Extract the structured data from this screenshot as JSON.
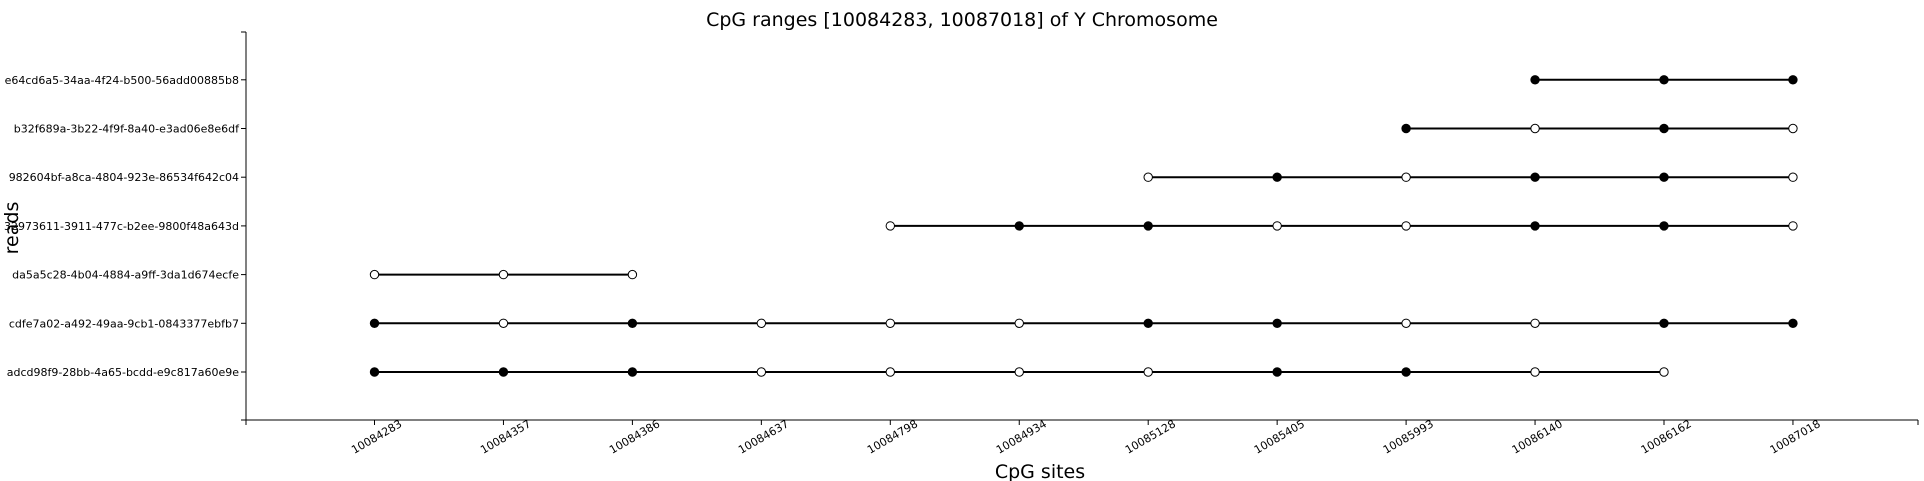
{
  "chart_data": {
    "type": "scatter",
    "title": "CpG ranges [10084283, 10087018] of Y Chromosome",
    "xlabel": "CpG sites",
    "ylabel": "reads",
    "grid": false,
    "categories": [
      "10084283",
      "10084357",
      "10084386",
      "10084637",
      "10084798",
      "10084934",
      "10085128",
      "10085405",
      "10085993",
      "10086140",
      "10086162",
      "10087018"
    ],
    "reads": [
      {
        "name": "adcd98f9-28bb-4a65-bcdd-e9c817a60e9e",
        "sites": [
          [
            0,
            1
          ],
          [
            1,
            1
          ],
          [
            2,
            1
          ],
          [
            3,
            0
          ],
          [
            4,
            0
          ],
          [
            5,
            0
          ],
          [
            6,
            0
          ],
          [
            7,
            1
          ],
          [
            8,
            1
          ],
          [
            9,
            0
          ],
          [
            10,
            0
          ]
        ]
      },
      {
        "name": "cdfe7a02-a492-49aa-9cb1-0843377ebfb7",
        "sites": [
          [
            0,
            1
          ],
          [
            1,
            0
          ],
          [
            2,
            1
          ],
          [
            3,
            0
          ],
          [
            4,
            0
          ],
          [
            5,
            0
          ],
          [
            6,
            1
          ],
          [
            7,
            1
          ],
          [
            8,
            0
          ],
          [
            9,
            0
          ],
          [
            10,
            1
          ],
          [
            11,
            1
          ]
        ]
      },
      {
        "name": "da5a5c28-4b04-4884-a9ff-3da1d674ecfe",
        "sites": [
          [
            0,
            0
          ],
          [
            1,
            0
          ],
          [
            2,
            0
          ]
        ]
      },
      {
        "name": "32973611-3911-477c-b2ee-9800f48a643d",
        "sites": [
          [
            4,
            0
          ],
          [
            5,
            1
          ],
          [
            6,
            1
          ],
          [
            7,
            0
          ],
          [
            8,
            0
          ],
          [
            9,
            1
          ],
          [
            10,
            1
          ],
          [
            11,
            0
          ]
        ]
      },
      {
        "name": "982604bf-a8ca-4804-923e-86534f642c04",
        "sites": [
          [
            6,
            0
          ],
          [
            7,
            1
          ],
          [
            8,
            0
          ],
          [
            9,
            1
          ],
          [
            10,
            1
          ],
          [
            11,
            0
          ]
        ]
      },
      {
        "name": "b32f689a-3b22-4f9f-8a40-e3ad06e8e6df",
        "sites": [
          [
            8,
            1
          ],
          [
            9,
            0
          ],
          [
            10,
            1
          ],
          [
            11,
            0
          ]
        ]
      },
      {
        "name": "e64cd6a5-34aa-4f24-b500-56add00885b8",
        "sites": [
          [
            9,
            1
          ],
          [
            10,
            1
          ],
          [
            11,
            1
          ]
        ]
      }
    ],
    "colors": {
      "methylated": "#000000",
      "unmethylated": "#ffffff",
      "line": "#000000"
    }
  }
}
